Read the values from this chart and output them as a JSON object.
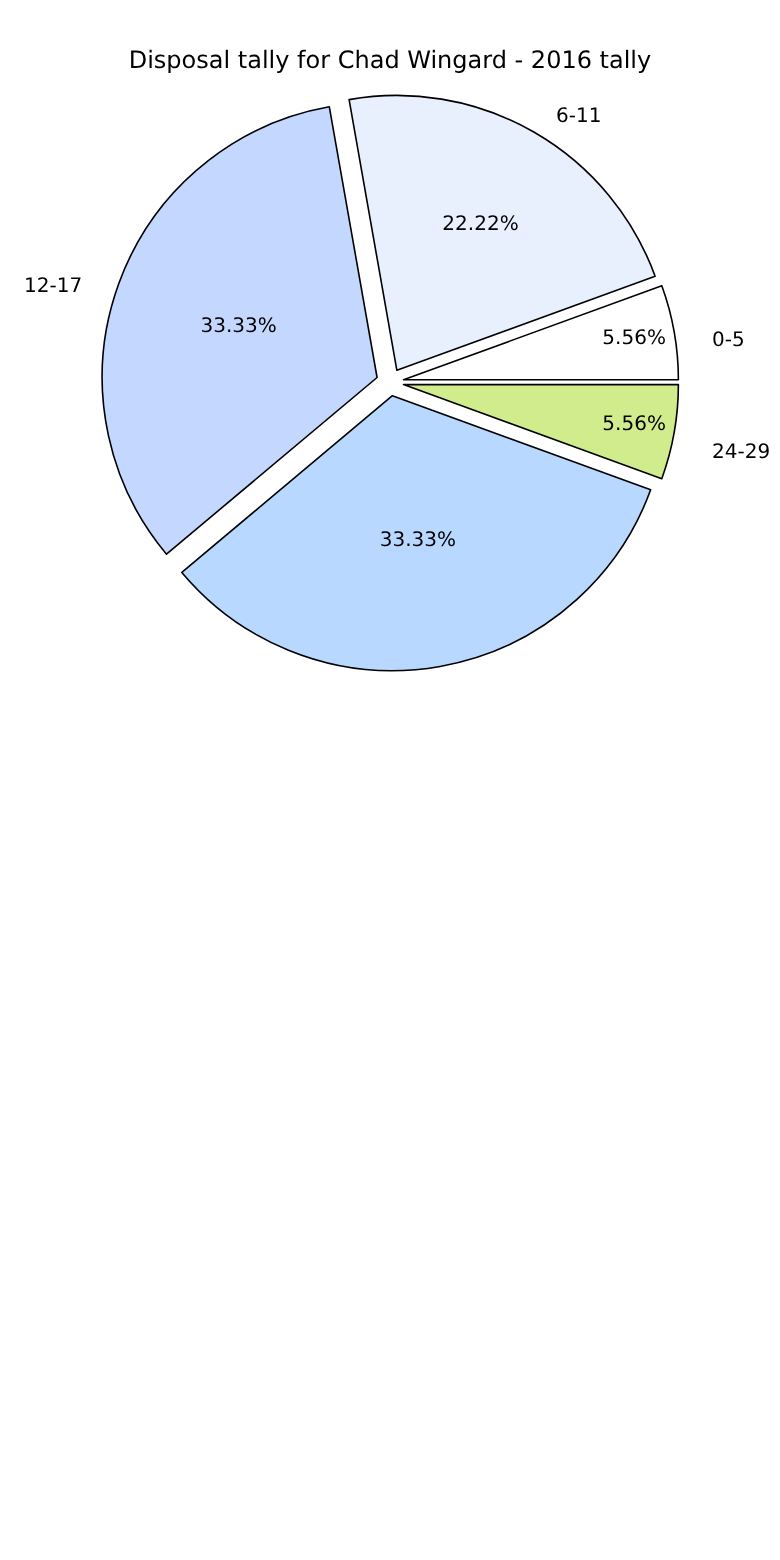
{
  "chart_data": {
    "type": "pie",
    "title": "Disposal tally for Chad Wingard - 2016 tally",
    "categories": [
      "0-5",
      "6-11",
      "12-17",
      null,
      "24-29"
    ],
    "values": [
      5.56,
      22.22,
      33.33,
      33.33,
      5.56
    ],
    "value_labels": [
      "5.56%",
      "22.22%",
      "33.33%",
      "33.33%",
      "5.56%"
    ],
    "colors": [
      "#ffffff",
      "#e8f0fe",
      "#c4d7ff",
      "#b8d8ff",
      "#d0ec8c"
    ],
    "legend": false
  }
}
